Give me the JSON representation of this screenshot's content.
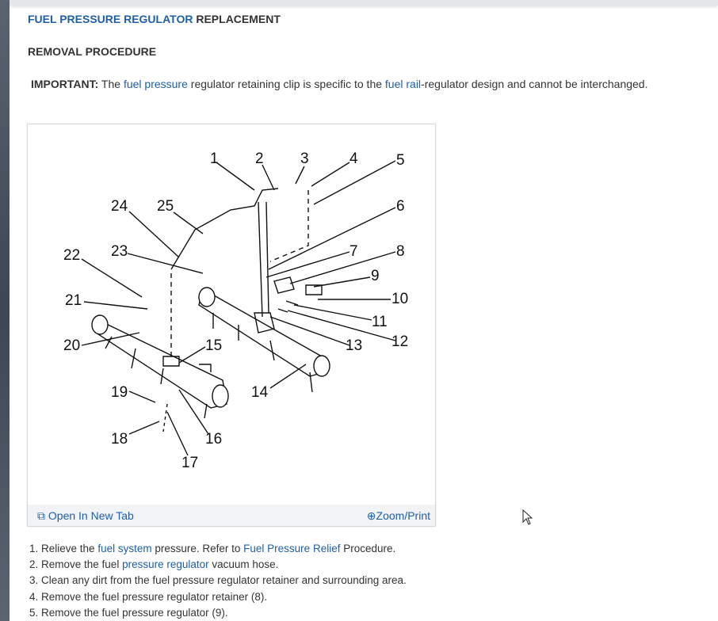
{
  "title": {
    "highlight": "FUEL PRESSURE REGULATOR",
    "rest": " REPLACEMENT"
  },
  "section": "REMOVAL PROCEDURE",
  "important": {
    "label": "IMPORTANT:",
    "t1": " The ",
    "l1": "fuel pressure",
    "t2": " regulator retaining clip is specific to the ",
    "l2": "fuel rail",
    "t3": "-regulator design and cannot be interchanged."
  },
  "figure": {
    "callouts": [
      "1",
      "2",
      "3",
      "4",
      "5",
      "6",
      "7",
      "8",
      "9",
      "10",
      "11",
      "12",
      "13",
      "14",
      "15",
      "16",
      "17",
      "18",
      "19",
      "20",
      "21",
      "22",
      "23",
      "24",
      "25"
    ],
    "open_label": "Open In New Tab",
    "zoom_label": "Zoom/Print",
    "open_icon": "open-new-tab-icon",
    "zoom_icon": "magnifier-plus-icon"
  },
  "steps": [
    {
      "n": "1. ",
      "a": "Relieve the ",
      "l1": "fuel system",
      "b": " pressure. Refer to ",
      "l2": "Fuel Pressure Relief",
      "c": " Procedure."
    },
    {
      "n": "2. ",
      "a": "Remove the fuel ",
      "l1": "pressure regulator",
      "b": " vacuum hose."
    },
    {
      "n": "3. ",
      "a": "Clean any dirt from the fuel pressure regulator retainer and surrounding area."
    },
    {
      "n": "4. ",
      "a": "Remove the fuel pressure regulator retainer (8)."
    },
    {
      "n": "5. ",
      "a": "Remove the fuel pressure regulator (9)."
    }
  ],
  "colors": {
    "link": "#1f5fa6",
    "text": "#333333"
  }
}
